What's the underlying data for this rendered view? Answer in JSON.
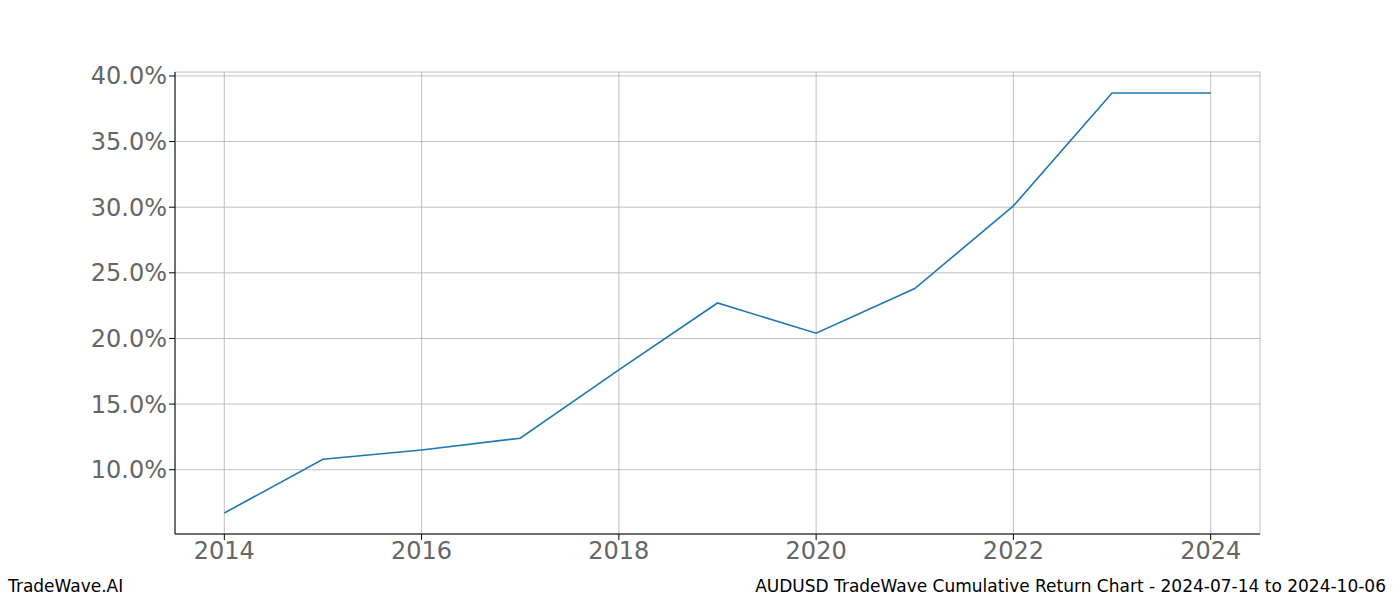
{
  "chart_data": {
    "type": "line",
    "title": "AUDUSD TradeWave Cumulative Return Chart - 2024-07-14 to 2024-10-06",
    "watermark": "TradeWave.AI",
    "x": [
      2014,
      2015,
      2016,
      2017,
      2018,
      2019,
      2020,
      2021,
      2022,
      2023,
      2024
    ],
    "series": [
      {
        "name": "AUDUSD",
        "color": "#1f77b4",
        "values": [
          6.7,
          10.8,
          11.5,
          12.4,
          17.6,
          22.7,
          20.4,
          23.8,
          30.1,
          38.7,
          38.7
        ]
      }
    ],
    "xlim": [
      2013.5,
      2024.5
    ],
    "xticks": [
      2014,
      2016,
      2018,
      2020,
      2022,
      2024
    ],
    "ylim": [
      5.1,
      40.3
    ],
    "yticks": [
      {
        "value": 10,
        "label": "10.0%"
      },
      {
        "value": 15,
        "label": "15.0%"
      },
      {
        "value": 20,
        "label": "20.0%"
      },
      {
        "value": 25,
        "label": "25.0%"
      },
      {
        "value": 30,
        "label": "30.0%"
      },
      {
        "value": 35,
        "label": "35.0%"
      },
      {
        "value": 40,
        "label": "40.0%"
      }
    ],
    "grid": true
  }
}
